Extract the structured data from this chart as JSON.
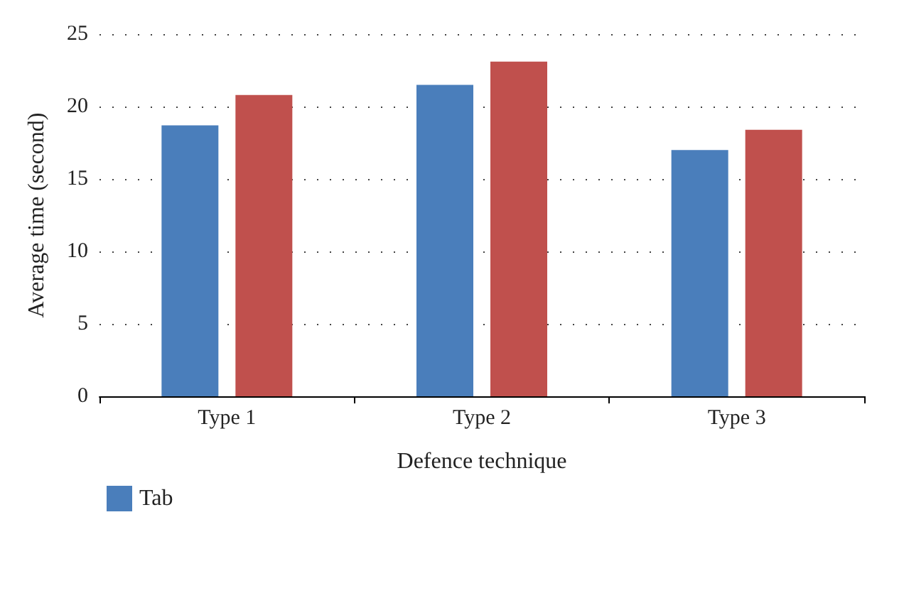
{
  "chart_data": {
    "type": "bar",
    "xlabel": "Defence technique",
    "ylabel": "Average time (second)",
    "categories": [
      "Type 1",
      "Type 2",
      "Type 3"
    ],
    "series": [
      {
        "name": "Tab",
        "color": "#4a7ebb",
        "values": [
          18.7,
          21.5,
          17.0
        ]
      },
      {
        "color": "#c0504d",
        "values": [
          20.8,
          23.1,
          18.4
        ]
      }
    ],
    "ylim": [
      0,
      25
    ],
    "yticks": [
      0,
      5,
      10,
      15,
      20,
      25
    ],
    "grid": "y",
    "legend": "bottom left"
  }
}
